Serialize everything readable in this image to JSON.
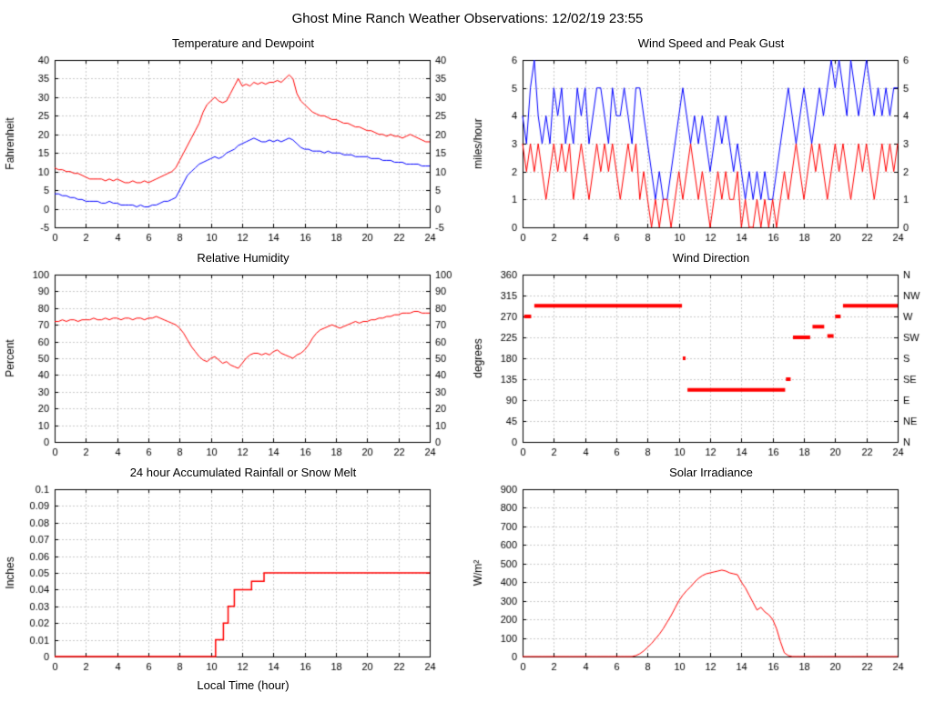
{
  "title": "Ghost Mine Ranch Weather Observations: 12/02/19 23:55",
  "colors": {
    "background": "#ffffff",
    "frame": "#000000",
    "grid": "#c9c9c9",
    "red_series": "#ff0000",
    "blue_series": "#0000ff"
  },
  "chart_data": [
    {
      "type": "line",
      "title": "Temperature and Dewpoint",
      "ylabel": "Fahrenheit",
      "xlabel": "",
      "xlim": [
        0,
        24
      ],
      "ylim": [
        -5,
        40
      ],
      "xtick": 2,
      "ytick": 5,
      "right_axis": "numeric",
      "grid": true,
      "x_start": 0,
      "x_step": 0.25,
      "series": [
        {
          "name": "temperature",
          "color": "#ff0000",
          "values": [
            11,
            10.5,
            10.5,
            10,
            10,
            9.5,
            9.5,
            9,
            8.5,
            8,
            8,
            8,
            8,
            7.5,
            8,
            7.5,
            8,
            7.5,
            7,
            7,
            7.5,
            7,
            7,
            7.5,
            7,
            7.5,
            8,
            8.5,
            9,
            9.5,
            10,
            11,
            13,
            15,
            17,
            19,
            21,
            23,
            26,
            28,
            29,
            30,
            29,
            28.5,
            29,
            31,
            33,
            35,
            33,
            33.5,
            33,
            34,
            33.5,
            34,
            33.5,
            34,
            34,
            34.5,
            34,
            35,
            36,
            35,
            31,
            29,
            28,
            27,
            26,
            25.5,
            25,
            25,
            24.5,
            24,
            24,
            23.5,
            23,
            23,
            22.5,
            22,
            22,
            21.5,
            21,
            21,
            20.5,
            20,
            20,
            19.5,
            20,
            19.5,
            19.5,
            19,
            19.5,
            20,
            19.5,
            19,
            18.5,
            18,
            18
          ]
        },
        {
          "name": "dewpoint",
          "color": "#0000ff",
          "values": [
            4,
            4,
            3.5,
            3.5,
            3,
            3,
            2.5,
            2.5,
            2,
            2,
            2,
            2,
            1.5,
            1.5,
            2,
            1.5,
            1.5,
            1,
            1,
            1,
            1,
            0.5,
            1,
            0.5,
            0.5,
            1,
            1,
            1.5,
            2,
            2,
            2.5,
            3,
            5,
            7,
            9,
            10,
            11,
            12,
            12.5,
            13,
            13.5,
            14,
            13.5,
            14,
            15,
            15.5,
            16,
            17,
            17.5,
            18,
            18.5,
            19,
            18.5,
            18,
            18,
            18.5,
            18,
            18.5,
            18,
            18.5,
            19,
            18.5,
            17.5,
            16.5,
            16,
            16,
            15.5,
            15.5,
            15.5,
            15,
            15.5,
            15,
            15,
            15,
            14.5,
            14.5,
            14.5,
            14,
            14,
            14,
            14,
            13.5,
            13.5,
            13.5,
            13,
            13,
            13,
            12.5,
            12.5,
            12.5,
            12,
            12,
            12,
            12,
            11.5,
            11.5,
            11.5
          ]
        }
      ]
    },
    {
      "type": "line",
      "title": "Wind Speed and Peak Gust",
      "ylabel": "miles/hour",
      "xlabel": "",
      "xlim": [
        0,
        24
      ],
      "ylim": [
        0,
        6
      ],
      "xtick": 2,
      "ytick": 1,
      "right_axis": "numeric",
      "grid": true,
      "x_start": 0,
      "x_step": 0.25,
      "series": [
        {
          "name": "peak_gust",
          "color": "#0000ff",
          "values": [
            4,
            3,
            5,
            6,
            4,
            3,
            4,
            3,
            5,
            4,
            5,
            3,
            4,
            3,
            5,
            4,
            5,
            3,
            4,
            5,
            5,
            4,
            3,
            5,
            4,
            4,
            5,
            4,
            3,
            5,
            5,
            4,
            3,
            2,
            1,
            2,
            1,
            1,
            2,
            3,
            4,
            5,
            4,
            3,
            4,
            3,
            4,
            3,
            2,
            3,
            4,
            3,
            4,
            3,
            2,
            3,
            2,
            1,
            2,
            1,
            2,
            1,
            2,
            1,
            1,
            2,
            3,
            4,
            5,
            4,
            3,
            4,
            5,
            4,
            3,
            4,
            5,
            4,
            5,
            6,
            5,
            6,
            5,
            4,
            6,
            5,
            4,
            5,
            6,
            5,
            4,
            5,
            4,
            5,
            4,
            5,
            5
          ]
        },
        {
          "name": "wind_speed",
          "color": "#ff0000",
          "values": [
            3,
            2,
            3,
            2,
            3,
            2,
            1,
            2,
            3,
            2,
            3,
            2,
            3,
            1,
            2,
            3,
            2,
            1,
            2,
            3,
            2,
            3,
            2,
            3,
            2,
            1,
            2,
            3,
            2,
            3,
            1,
            2,
            1,
            0,
            1,
            0,
            1,
            1,
            0,
            1,
            2,
            1,
            2,
            3,
            2,
            1,
            2,
            1,
            0,
            1,
            2,
            1,
            2,
            1,
            1,
            2,
            0,
            1,
            0,
            0,
            1,
            0,
            1,
            0,
            1,
            0,
            1,
            2,
            1,
            2,
            3,
            2,
            1,
            2,
            3,
            2,
            3,
            2,
            1,
            2,
            3,
            2,
            3,
            2,
            1,
            2,
            3,
            2,
            3,
            2,
            1,
            2,
            3,
            2,
            3,
            2,
            3
          ]
        }
      ]
    },
    {
      "type": "line",
      "title": "Relative Humidity",
      "ylabel": "Percent",
      "xlabel": "",
      "xlim": [
        0,
        24
      ],
      "ylim": [
        0,
        100
      ],
      "xtick": 2,
      "ytick": 10,
      "right_axis": "numeric",
      "grid": true,
      "x_start": 0,
      "x_step": 0.25,
      "series": [
        {
          "name": "relative_humidity",
          "color": "#ff0000",
          "values": [
            72,
            72,
            73,
            72,
            73,
            73,
            72,
            73,
            73,
            73,
            74,
            73,
            73,
            74,
            73,
            74,
            74,
            73,
            74,
            74,
            73,
            74,
            74,
            73,
            74,
            74,
            75,
            74,
            73,
            72,
            71,
            70,
            68,
            65,
            61,
            57,
            54,
            51,
            49,
            48,
            50,
            51,
            49,
            47,
            48,
            46,
            45,
            44,
            47,
            50,
            52,
            53,
            53,
            52,
            53,
            52,
            54,
            55,
            53,
            52,
            51,
            50,
            52,
            53,
            55,
            58,
            62,
            65,
            67,
            68,
            69,
            70,
            69,
            68,
            69,
            70,
            71,
            72,
            71,
            72,
            72,
            73,
            73,
            74,
            74,
            75,
            75,
            76,
            76,
            77,
            77,
            77,
            78,
            78,
            77,
            77,
            77
          ]
        }
      ]
    },
    {
      "type": "segments",
      "title": "Wind Direction",
      "ylabel": "degrees",
      "xlabel": "",
      "xlim": [
        0,
        24
      ],
      "ylim": [
        0,
        360
      ],
      "xtick": 2,
      "ytick": 45,
      "right_axis": "compass",
      "right_labels": [
        "N",
        "NW",
        "W",
        "SW",
        "S",
        "SE",
        "E",
        "NE",
        "N"
      ],
      "grid": true,
      "segment_color": "#ff0000",
      "segments": [
        [
          0.1,
          0.55,
          270
        ],
        [
          0.75,
          10.2,
          293
        ],
        [
          10.25,
          10.4,
          180
        ],
        [
          10.55,
          16.8,
          112
        ],
        [
          16.85,
          17.15,
          135
        ],
        [
          17.3,
          18.4,
          225
        ],
        [
          18.55,
          19.3,
          248
        ],
        [
          19.5,
          19.9,
          228
        ],
        [
          20.0,
          20.35,
          270
        ],
        [
          20.5,
          24,
          293
        ]
      ]
    },
    {
      "type": "steps",
      "title": "24 hour Accumulated Rainfall or Snow Melt",
      "ylabel": "Inches",
      "xlabel": "Local Time (hour)",
      "xlim": [
        0,
        24
      ],
      "ylim": [
        0,
        0.1
      ],
      "xtick": 2,
      "ytick": 0.01,
      "right_axis": "none",
      "grid": true,
      "step_color": "#ff0000",
      "points": [
        [
          0,
          0
        ],
        [
          10.3,
          0
        ],
        [
          10.3,
          0.01
        ],
        [
          10.8,
          0.01
        ],
        [
          10.8,
          0.02
        ],
        [
          11.1,
          0.02
        ],
        [
          11.1,
          0.03
        ],
        [
          11.5,
          0.03
        ],
        [
          11.5,
          0.04
        ],
        [
          12.6,
          0.04
        ],
        [
          12.6,
          0.045
        ],
        [
          13.4,
          0.045
        ],
        [
          13.4,
          0.05
        ],
        [
          24,
          0.05
        ]
      ]
    },
    {
      "type": "line",
      "title": "Solar Irradiance",
      "ylabel": "W/m²",
      "xlabel": "",
      "xlim": [
        0,
        24
      ],
      "ylim": [
        0,
        900
      ],
      "xtick": 2,
      "ytick": 100,
      "right_axis": "none",
      "grid": true,
      "x_start": 0,
      "x_step": 0.25,
      "series": [
        {
          "name": "solar_irradiance",
          "color": "#ff0000",
          "values": [
            0,
            0,
            0,
            0,
            0,
            0,
            0,
            0,
            0,
            0,
            0,
            0,
            0,
            0,
            0,
            0,
            0,
            0,
            0,
            0,
            0,
            0,
            0,
            0,
            0,
            0,
            0,
            0,
            0,
            5,
            15,
            30,
            50,
            70,
            95,
            120,
            150,
            185,
            220,
            260,
            300,
            330,
            355,
            375,
            400,
            420,
            435,
            445,
            450,
            455,
            460,
            465,
            460,
            450,
            445,
            440,
            400,
            370,
            330,
            290,
            250,
            265,
            240,
            225,
            200,
            150,
            80,
            20,
            5,
            0,
            0,
            0,
            0,
            0,
            0,
            0,
            0,
            0,
            0,
            0,
            0,
            0,
            0,
            0,
            0,
            0,
            0,
            0,
            0,
            0,
            0,
            0,
            0,
            0,
            0,
            0,
            0
          ]
        }
      ]
    }
  ]
}
